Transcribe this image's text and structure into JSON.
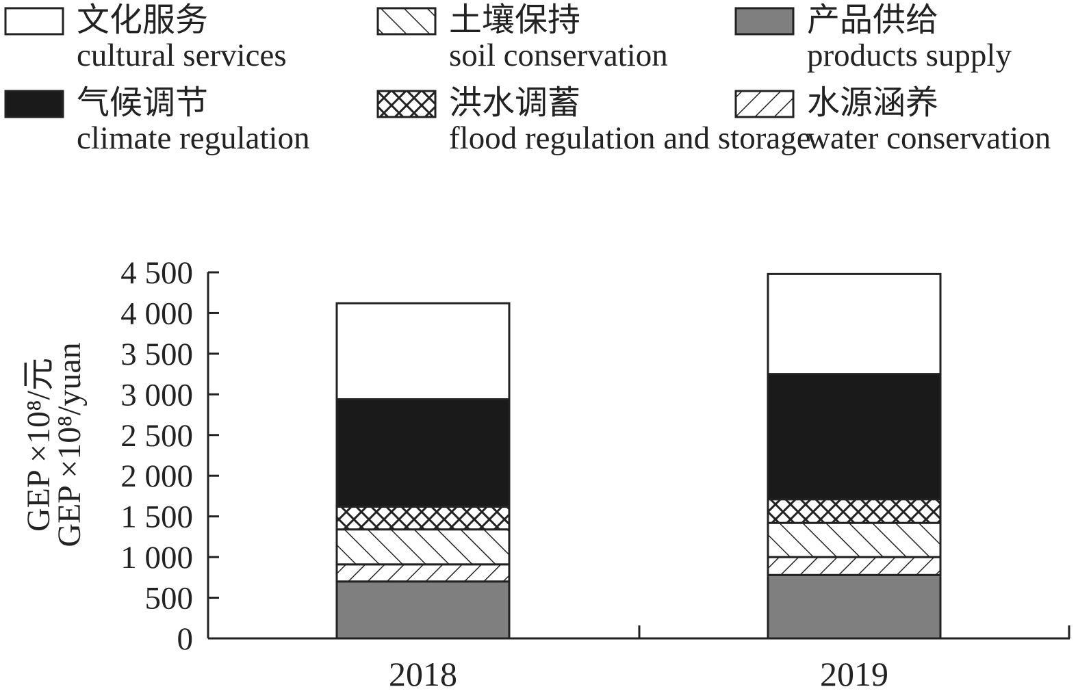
{
  "chart_data": {
    "type": "bar",
    "stacked": true,
    "title": "",
    "xlabel": "",
    "ylabel_lines": [
      "GEP ×10⁸/元",
      "GEP ×10⁸/yuan"
    ],
    "categories": [
      "2018",
      "2019"
    ],
    "ylim": [
      0,
      4500
    ],
    "yticks": [
      0,
      500,
      1000,
      1500,
      2000,
      2500,
      3000,
      3500,
      4000,
      4500
    ],
    "ytick_labels": [
      "0",
      "500",
      "1 000",
      "1 500",
      "2 000",
      "2 500",
      "3 000",
      "3 500",
      "4 000",
      "4 500"
    ],
    "series": [
      {
        "key": "products",
        "name_zh": "产品供给",
        "name_en": "products supply",
        "pattern": "solid-gray",
        "color": "#7f7f7f",
        "values": [
          700,
          780
        ]
      },
      {
        "key": "water",
        "name_zh": "水源涵养",
        "name_en": "water conservation",
        "pattern": "forward-hatch",
        "color": "#ffffff",
        "values": [
          210,
          220
        ]
      },
      {
        "key": "soil",
        "name_zh": "土壤保持",
        "name_en": "soil conservation",
        "pattern": "back-hatch",
        "color": "#ffffff",
        "values": [
          430,
          420
        ]
      },
      {
        "key": "flood",
        "name_zh": "洪水调蓄",
        "name_en": "flood regulation and storage",
        "pattern": "cross-hatch",
        "color": "#ffffff",
        "values": [
          280,
          290
        ]
      },
      {
        "key": "climate",
        "name_zh": "气候调节",
        "name_en": "climate regulation",
        "pattern": "solid-black",
        "color": "#1a1a1a",
        "values": [
          1320,
          1540
        ]
      },
      {
        "key": "cultural",
        "name_zh": "文化服务",
        "name_en": "cultural services",
        "pattern": "solid-white",
        "color": "#ffffff",
        "values": [
          1180,
          1230
        ]
      }
    ],
    "legend_order": [
      "cultural",
      "soil",
      "products",
      "climate",
      "flood",
      "water"
    ],
    "legend": "top",
    "grid": false
  }
}
